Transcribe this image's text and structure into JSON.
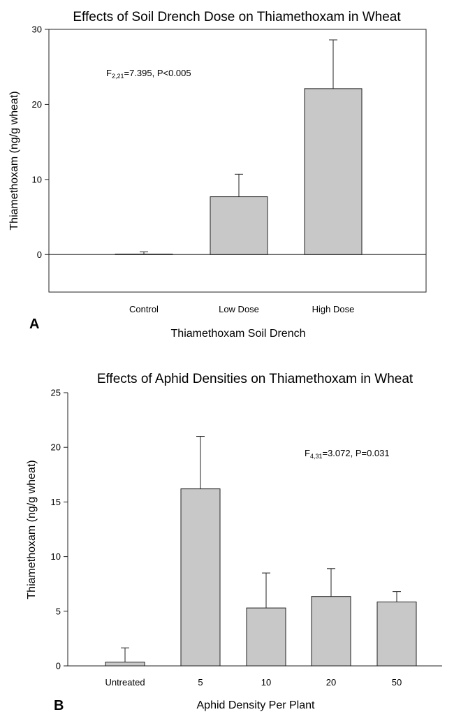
{
  "chart_data": [
    {
      "panel": "A",
      "type": "bar",
      "title": "Effects of Soil Drench Dose on Thiamethoxam in Wheat",
      "xlabel": "Thiamethoxam Soil Drench",
      "ylabel": "Thiamethoxam (ng/g wheat)",
      "categories": [
        "Control",
        "Low Dose",
        "High Dose"
      ],
      "values": [
        0.05,
        7.7,
        22.1
      ],
      "errors": [
        0.3,
        3.0,
        6.5
      ],
      "ylim": [
        -5,
        30
      ],
      "yticks": [
        0,
        10,
        20,
        30
      ],
      "annotation": {
        "prefix": "F",
        "sub": "2,21",
        "text": "=7.395, P<0.005"
      },
      "grid": false,
      "bar_color": "#c8c8c8"
    },
    {
      "panel": "B",
      "type": "bar",
      "title": "Effects of Aphid Densities on Thiamethoxam in Wheat",
      "xlabel": "Aphid Density Per Plant",
      "ylabel": "Thiamethoxam (ng/g wheat)",
      "categories": [
        "Untreated",
        "5",
        "10",
        "20",
        "50"
      ],
      "values": [
        0.35,
        16.2,
        5.3,
        6.35,
        5.85
      ],
      "errors": [
        1.3,
        4.8,
        3.2,
        2.55,
        0.95
      ],
      "ylim": [
        0,
        25
      ],
      "yticks": [
        0,
        5,
        10,
        15,
        20,
        25
      ],
      "annotation": {
        "prefix": "F",
        "sub": "4,31",
        "text": "=3.072, P=0.031"
      },
      "grid": false,
      "bar_color": "#c8c8c8"
    }
  ]
}
